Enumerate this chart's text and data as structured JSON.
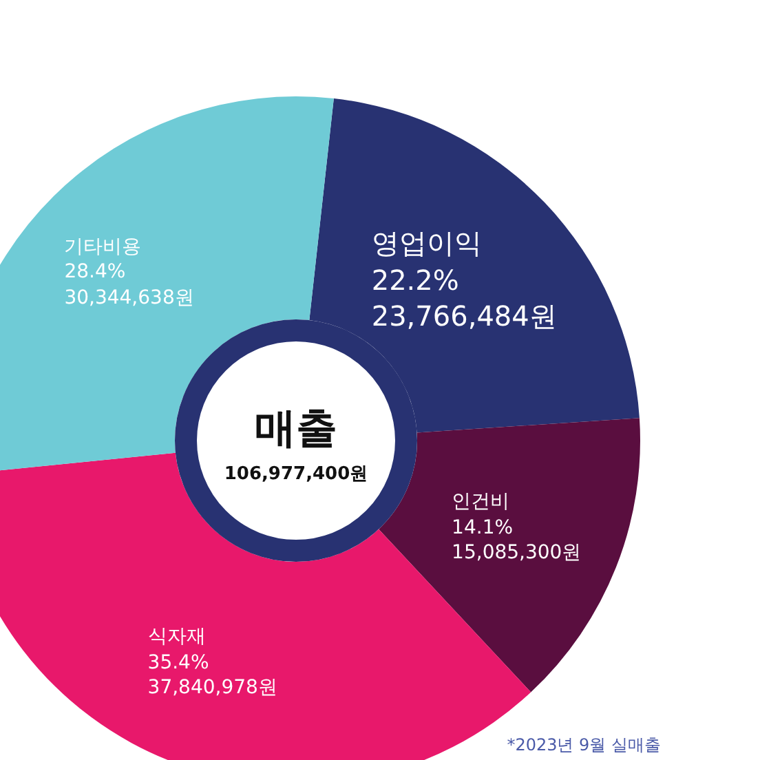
{
  "chart_data": {
    "type": "donut",
    "title": "매출",
    "subtitle": "106,977,400원",
    "categories": [
      "영업이익",
      "인건비",
      "식자재",
      "기타비용"
    ],
    "values": [
      23766484,
      15085300,
      37840978,
      30344638
    ],
    "colors": [
      "#283272",
      "#5a0e3f",
      "#e8186b",
      "#6fcbd6"
    ],
    "value_labels": [
      "22.2%\n23,766,484원",
      "14.1%\n15,085,300원",
      "35.4%\n37,840,978원",
      "28.4%\n30,344,638원"
    ],
    "annotations": [
      "*2023년 9월 실매출"
    ]
  }
}
